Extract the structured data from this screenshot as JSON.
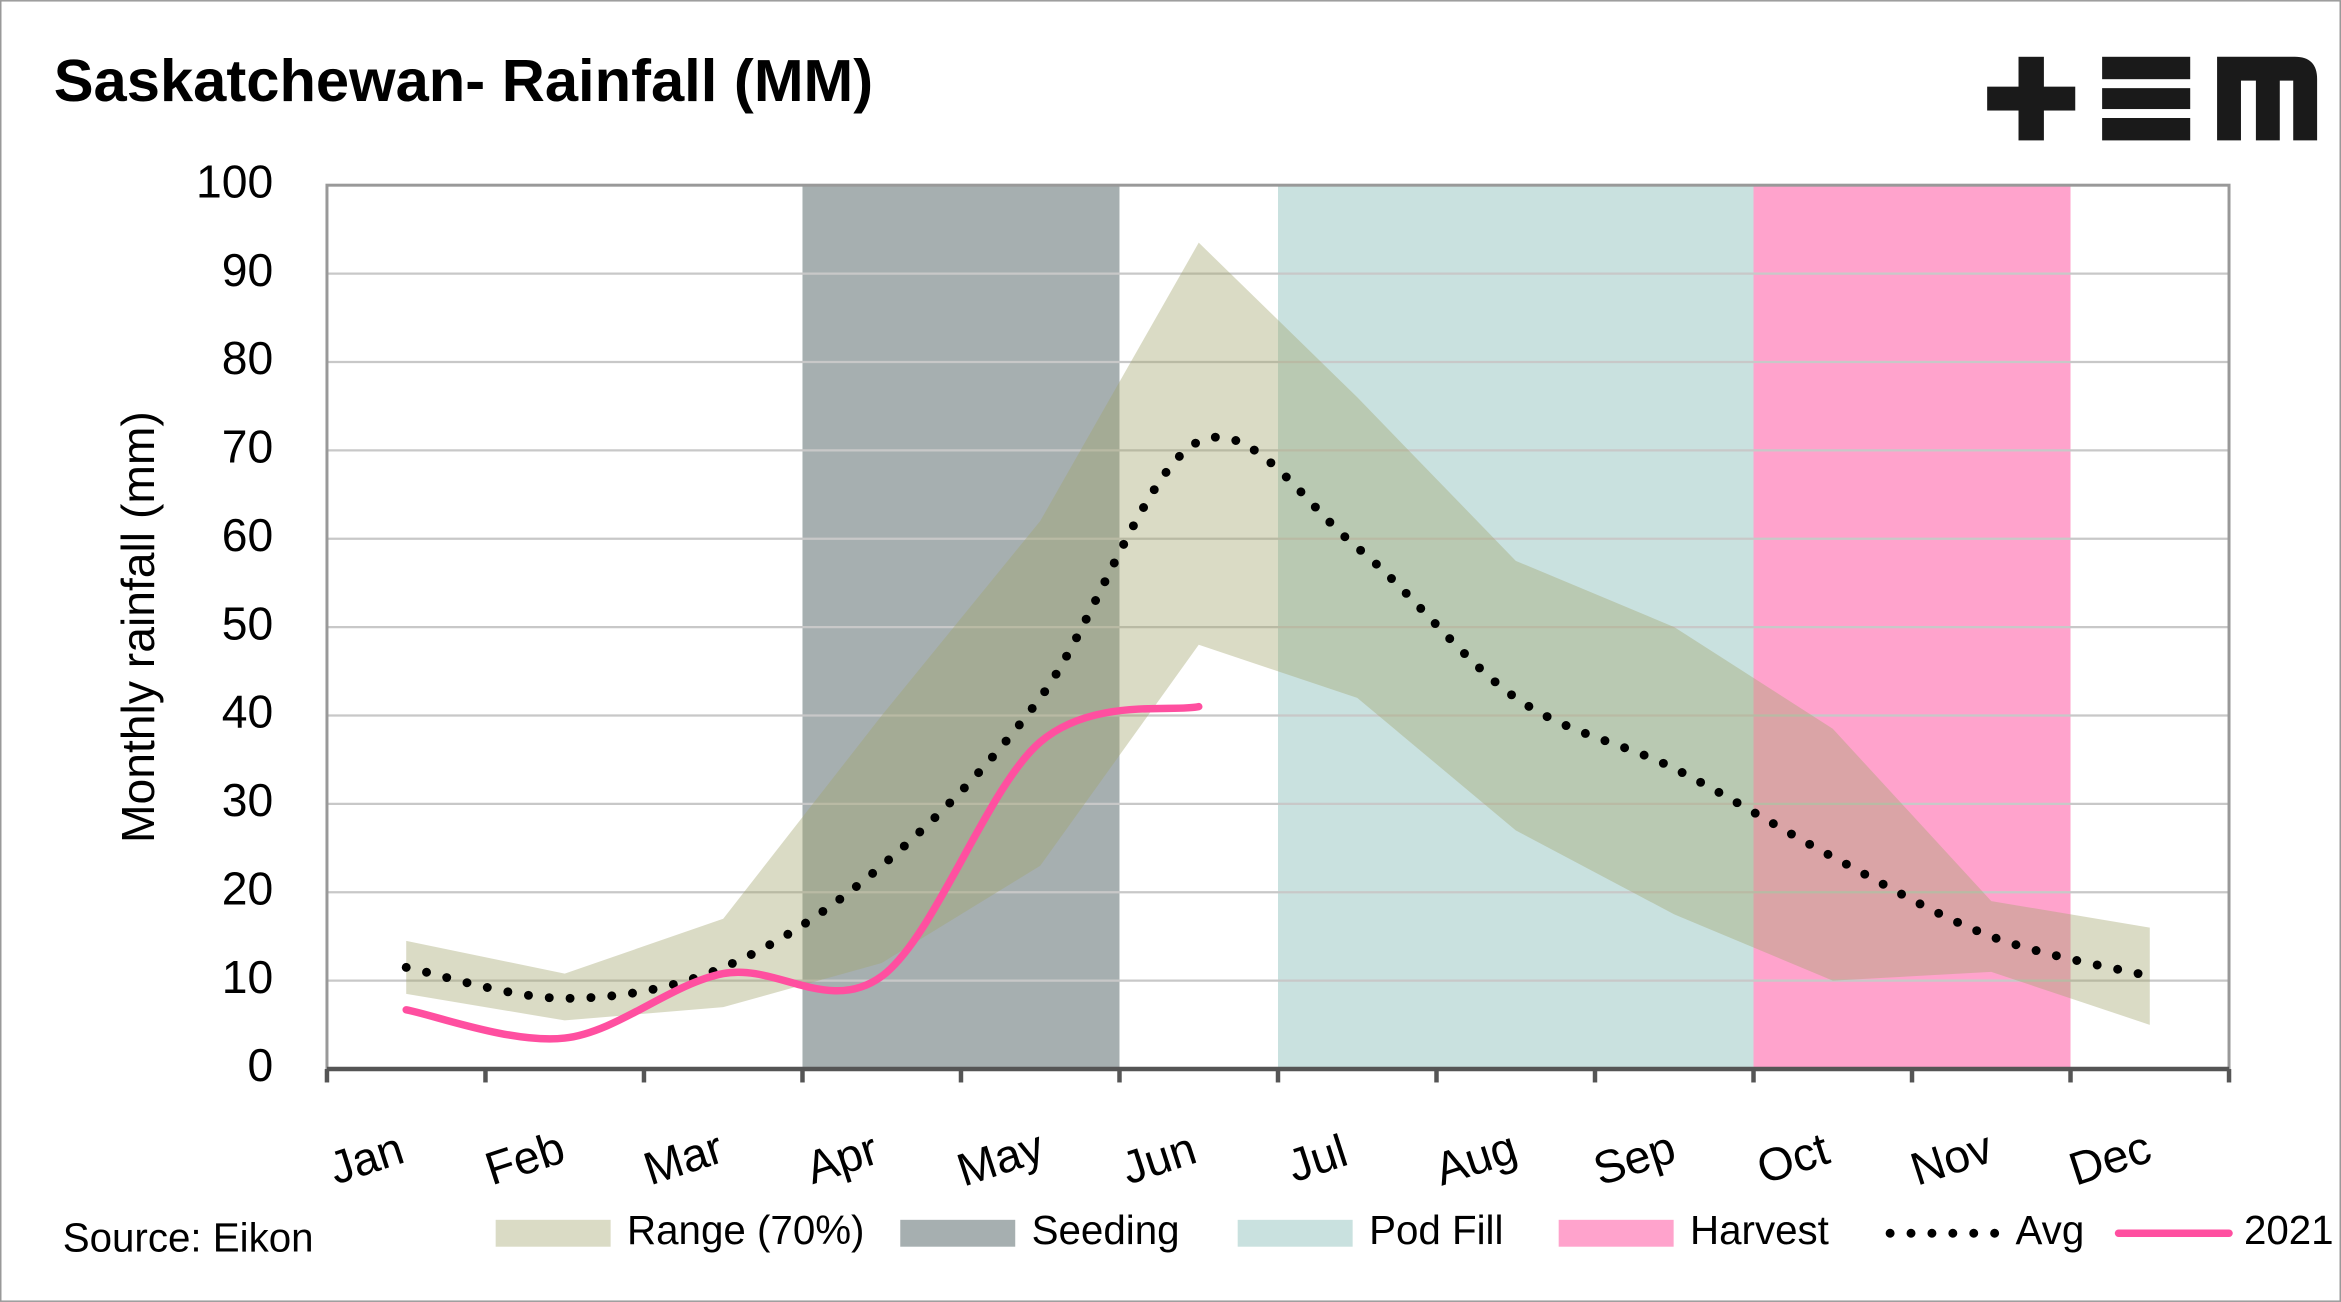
{
  "chart_data": {
    "type": "line",
    "title": "Saskatchewan- Rainfall (MM)",
    "y_label": "Monthly rainfall (mm)",
    "source": "Source: Eikon",
    "categories": [
      "Jan",
      "Feb",
      "Mar",
      "Apr",
      "May",
      "Jun",
      "Jul",
      "Aug",
      "Sep",
      "Oct",
      "Nov",
      "Dec"
    ],
    "ylim": [
      0,
      100
    ],
    "yticks": [
      0,
      10,
      20,
      30,
      40,
      50,
      60,
      70,
      80,
      90,
      100
    ],
    "grid": true,
    "bands": [
      {
        "name": "Seeding",
        "color": "#a6afb0",
        "from": 3,
        "to": 5
      },
      {
        "name": "Pod Fill",
        "color": "#c9e1df",
        "from": 6,
        "to": 9
      },
      {
        "name": "Harvest",
        "color": "#ffa3cc",
        "from": 9,
        "to": 11
      }
    ],
    "range": {
      "name": "Range (70%)",
      "color": "#a3a66e",
      "high": [
        14.5,
        10.8,
        17,
        40,
        62,
        93.5,
        76,
        57.5,
        50,
        38.5,
        19,
        16
      ],
      "low": [
        8.5,
        5.5,
        7,
        12,
        23,
        48,
        42,
        27,
        17.5,
        10,
        11,
        5
      ]
    },
    "series": [
      {
        "name": "Avg",
        "color": "#000000",
        "style": "dotted",
        "values": [
          11.5,
          8,
          11.5,
          23,
          42,
          71,
          59,
          42,
          34,
          24,
          15,
          10.5
        ]
      },
      {
        "name": "2021",
        "color": "#ff4fa0",
        "style": "solid",
        "values": [
          6.7,
          3.5,
          10.8,
          10.5,
          37,
          41,
          null,
          null,
          null,
          null,
          null,
          null
        ]
      }
    ]
  }
}
